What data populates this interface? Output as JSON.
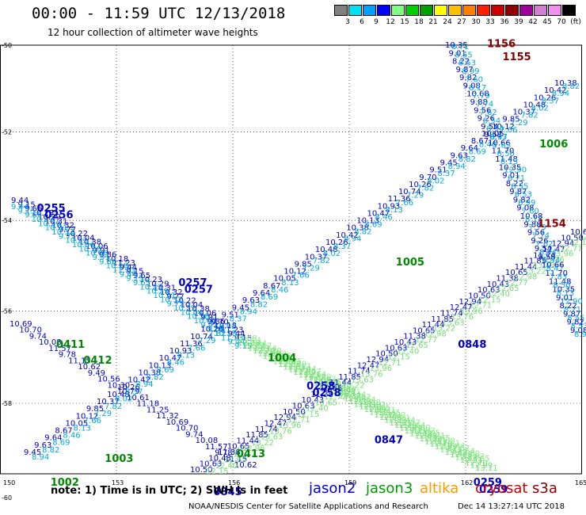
{
  "header": {
    "title": "00:00 - 11:59 UTC 12/13/2018",
    "subtitle": "12 hour collection of altimeter wave heights"
  },
  "colorbar": {
    "labels": [
      "3",
      "6",
      "9",
      "12",
      "15",
      "18",
      "21",
      "24",
      "27",
      "30",
      "33",
      "36",
      "39",
      "42",
      "45",
      "70",
      "(ft)"
    ],
    "colors": [
      "#808080",
      "#00e0f0",
      "#00a0ff",
      "#0000ff",
      "#80ff80",
      "#00d000",
      "#00a000",
      "#ffff00",
      "#ffc000",
      "#ff8000",
      "#ff2000",
      "#d00000",
      "#900000",
      "#a000a0",
      "#d080d0",
      "#f090f0",
      "#000000"
    ]
  },
  "map": {
    "lon_ticks": [
      "150",
      "153",
      "156",
      "159",
      "162",
      "165"
    ],
    "lat_ticks": [
      "-50",
      "-52",
      "-54",
      "-56",
      "-58",
      "-60"
    ]
  },
  "tracks": [
    {
      "color": "#0000cc",
      "labels": [
        "10.69",
        "10.50",
        "10.63",
        "10.43",
        "10.35"
      ]
    },
    {
      "color": "#00aadd",
      "labels": [
        "8.71",
        "8.55",
        "8.53",
        "8.99",
        "7.60",
        "8.17",
        "7.79"
      ]
    }
  ],
  "time_labels": [
    {
      "text": "0255",
      "color": "#0000cc",
      "lon": 150.95,
      "lat": -53.8
    },
    {
      "text": "0256",
      "color": "#0000cc",
      "lon": 151.15,
      "lat": -53.95
    },
    {
      "text": "0257",
      "color": "#0000cc",
      "lon": 154.6,
      "lat": -55.45
    },
    {
      "text": "0257",
      "color": "#0000cc",
      "lon": 154.75,
      "lat": -55.6
    },
    {
      "text": "0258",
      "color": "#0000cc",
      "lon": 157.9,
      "lat": -57.7
    },
    {
      "text": "0258",
      "color": "#0000cc",
      "lon": 158.05,
      "lat": -57.85
    },
    {
      "text": "0259",
      "color": "#0000cc",
      "lon": 162.2,
      "lat": -59.75
    },
    {
      "text": "0259",
      "color": "#0000cc",
      "lon": 162.35,
      "lat": -59.9
    },
    {
      "text": "0411",
      "color": "#008800",
      "lon": 151.45,
      "lat": -56.8
    },
    {
      "text": "0412",
      "color": "#008800",
      "lon": 152.15,
      "lat": -57.15
    },
    {
      "text": "1003",
      "color": "#008800",
      "lon": 152.7,
      "lat": -59.25
    },
    {
      "text": "1002",
      "color": "#008800",
      "lon": 151.3,
      "lat": -59.75
    },
    {
      "text": "1004",
      "color": "#008800",
      "lon": 156.9,
      "lat": -57.1
    },
    {
      "text": "1005",
      "color": "#008800",
      "lon": 160.2,
      "lat": -55.0
    },
    {
      "text": "1006",
      "color": "#008800",
      "lon": 163.9,
      "lat": -52.35
    },
    {
      "text": "0413",
      "color": "#008800",
      "lon": 156.1,
      "lat": -59.15
    },
    {
      "text": "0847",
      "color": "#0000cc",
      "lon": 159.65,
      "lat": -58.85
    },
    {
      "text": "0848",
      "color": "#0000cc",
      "lon": 161.8,
      "lat": -56.8
    },
    {
      "text": "0845",
      "color": "#0000cc",
      "lon": 155.5,
      "lat": -59.95
    },
    {
      "text": "1156",
      "color": "#880000",
      "lon": 162.55,
      "lat": -50.05
    },
    {
      "text": "1155",
      "color": "#880000",
      "lon": 162.95,
      "lat": -50.35
    },
    {
      "text": "1154",
      "color": "#880000",
      "lon": 163.85,
      "lat": -54.15
    }
  ],
  "footer": {
    "note": "note: 1) Time is in UTC; 2) SWH is in feet",
    "sat_jason2": "jason2",
    "sat_jason3": "jason3",
    "sat_altika": "altika",
    "sat_cryosat": "cryosat",
    "sat_s3a": "s3a",
    "credit": "NOAA/NESDIS Center for Satellite Applications and Research",
    "timestamp": "Dec 14 13:27:14 UTC 2018"
  }
}
